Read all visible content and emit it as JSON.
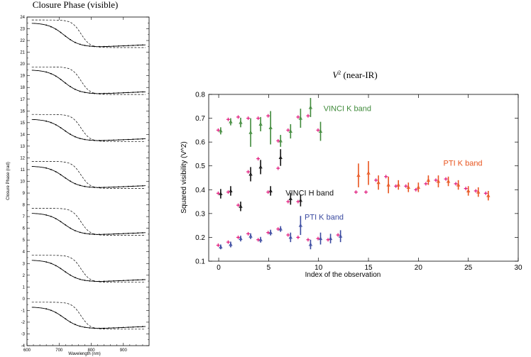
{
  "charts": [
    {
      "id": "left",
      "title": "Closure Phase (visible)",
      "xlabel": "Wavelength (nm)",
      "ylabel": "Closure Phase (rad)"
    },
    {
      "id": "right",
      "title_main": "V",
      "title_sup": "2",
      "title_rest": " (near-IR)",
      "xlabel": "Index of the observation",
      "ylabel": "Squared visibility (V^2)"
    }
  ],
  "chart_data": [
    {
      "type": "line",
      "title": "Closure Phase (visible)",
      "xlabel": "Wavelength (nm)",
      "ylabel": "Closure Phase (rad)",
      "xlim": [
        600,
        980
      ],
      "ylim": [
        -4,
        24
      ],
      "xticks": [
        600,
        700,
        800,
        900
      ],
      "yticks": [
        -4,
        -3,
        -2,
        -1,
        0,
        1,
        2,
        3,
        4,
        5,
        6,
        7,
        8,
        9,
        10,
        11,
        12,
        13,
        14,
        15,
        16,
        17,
        18,
        19,
        20,
        21,
        22,
        23,
        24
      ],
      "panels": [
        {
          "high": 23.5,
          "low": 21.45,
          "dash_high": 23.75,
          "dash_low": 21.4
        },
        {
          "high": 19.5,
          "low": 17.45,
          "dash_high": 19.75,
          "dash_low": 17.4
        },
        {
          "high": 15.3,
          "low": 13.45,
          "dash_high": 15.7,
          "dash_low": 13.4
        },
        {
          "high": 11.3,
          "low": 9.45,
          "dash_high": 11.7,
          "dash_low": 9.4
        },
        {
          "high": 7.3,
          "low": 5.45,
          "dash_high": 7.7,
          "dash_low": 5.4
        },
        {
          "high": 3.3,
          "low": 1.45,
          "dash_high": 3.7,
          "dash_low": 1.4
        },
        {
          "high": -0.7,
          "low": -2.55,
          "dash_high": -0.3,
          "dash_low": -2.6
        }
      ],
      "line_styles": [
        "solid",
        "dashed"
      ]
    },
    {
      "type": "scatter",
      "title": "V2 (near-IR)",
      "xlabel": "Index of the observation",
      "ylabel": "Squared visibility (V^2)",
      "xlim": [
        -1,
        30
      ],
      "ylim": [
        0.1,
        0.8
      ],
      "xticks": [
        0,
        5,
        10,
        15,
        20,
        25,
        30
      ],
      "yticks": [
        0.1,
        0.2,
        0.3,
        0.4,
        0.5,
        0.6,
        0.7,
        0.8
      ],
      "model_color": "#e0157a",
      "series": [
        {
          "name": "VINCI K band",
          "color": "#3f8a3a",
          "label_pos": [
            10.5,
            0.73
          ],
          "points": [
            {
              "x": 0.2,
              "y": 0.647,
              "err": 0.015,
              "model": 0.65
            },
            {
              "x": 1.2,
              "y": 0.685,
              "err": 0.015,
              "model": 0.695
            },
            {
              "x": 2.2,
              "y": 0.682,
              "err": 0.02,
              "model": 0.705
            },
            {
              "x": 3.2,
              "y": 0.64,
              "err": 0.06,
              "model": 0.7
            },
            {
              "x": 4.2,
              "y": 0.675,
              "err": 0.03,
              "model": 0.7
            },
            {
              "x": 5.2,
              "y": 0.66,
              "err": 0.07,
              "model": 0.71
            },
            {
              "x": 6.2,
              "y": 0.605,
              "err": 0.025,
              "model": 0.605
            },
            {
              "x": 7.2,
              "y": 0.645,
              "err": 0.03,
              "model": 0.65
            },
            {
              "x": 8.2,
              "y": 0.7,
              "err": 0.04,
              "model": 0.705
            },
            {
              "x": 9.2,
              "y": 0.745,
              "err": 0.04,
              "model": 0.71
            },
            {
              "x": 10.2,
              "y": 0.645,
              "err": 0.04,
              "model": 0.65
            }
          ]
        },
        {
          "name": "VINCI H band",
          "color": "#111111",
          "label_pos": [
            6.7,
            0.375
          ],
          "points": [
            {
              "x": 0.2,
              "y": 0.383,
              "err": 0.02,
              "model": 0.385
            },
            {
              "x": 1.2,
              "y": 0.395,
              "err": 0.02,
              "model": 0.39
            },
            {
              "x": 2.2,
              "y": 0.33,
              "err": 0.02,
              "model": 0.335
            },
            {
              "x": 3.2,
              "y": 0.465,
              "err": 0.03,
              "model": 0.475
            },
            {
              "x": 4.2,
              "y": 0.495,
              "err": 0.03,
              "model": 0.53
            },
            {
              "x": 5.2,
              "y": 0.395,
              "err": 0.02,
              "model": 0.39
            },
            {
              "x": 6.2,
              "y": 0.535,
              "err": 0.035,
              "model": 0.49
            },
            {
              "x": 7.2,
              "y": 0.362,
              "err": 0.025,
              "model": 0.35
            },
            {
              "x": 8.2,
              "y": 0.355,
              "err": 0.025,
              "model": 0.35
            }
          ]
        },
        {
          "name": "PTI K band",
          "color": "#3a4aa0",
          "label_pos": [
            8.6,
            0.275
          ],
          "points": [
            {
              "x": 0.2,
              "y": 0.16,
              "err": 0.01,
              "model": 0.167
            },
            {
              "x": 1.2,
              "y": 0.17,
              "err": 0.012,
              "model": 0.18
            },
            {
              "x": 2.2,
              "y": 0.195,
              "err": 0.012,
              "model": 0.2
            },
            {
              "x": 3.2,
              "y": 0.205,
              "err": 0.012,
              "model": 0.215
            },
            {
              "x": 4.2,
              "y": 0.19,
              "err": 0.012,
              "model": 0.19
            },
            {
              "x": 5.2,
              "y": 0.22,
              "err": 0.012,
              "model": 0.22
            },
            {
              "x": 6.2,
              "y": 0.235,
              "err": 0.012,
              "model": 0.235
            },
            {
              "x": 7.2,
              "y": 0.2,
              "err": 0.02,
              "model": 0.21
            },
            {
              "x": 8.2,
              "y": 0.25,
              "err": 0.04,
              "model": 0.2
            },
            {
              "x": 9.2,
              "y": 0.17,
              "err": 0.02,
              "model": 0.19
            },
            {
              "x": 10.2,
              "y": 0.195,
              "err": 0.025,
              "model": 0.195
            },
            {
              "x": 11.2,
              "y": 0.195,
              "err": 0.02,
              "model": 0.19
            },
            {
              "x": 12.2,
              "y": 0.205,
              "err": 0.025,
              "model": 0.21
            }
          ]
        },
        {
          "name": "PTI K band",
          "color": "#e8541e",
          "label_pos": [
            22.5,
            0.5
          ],
          "points": [
            {
              "x": 14.0,
              "y": 0.46,
              "err": 0.05,
              "model": 0.39
            },
            {
              "x": 15.0,
              "y": 0.47,
              "err": 0.05,
              "model": 0.39
            },
            {
              "x": 16.0,
              "y": 0.43,
              "err": 0.03,
              "model": 0.44
            },
            {
              "x": 17.0,
              "y": 0.42,
              "err": 0.035,
              "model": 0.455
            },
            {
              "x": 18.0,
              "y": 0.42,
              "err": 0.02,
              "model": 0.415
            },
            {
              "x": 19.0,
              "y": 0.41,
              "err": 0.02,
              "model": 0.415
            },
            {
              "x": 20.0,
              "y": 0.41,
              "err": 0.02,
              "model": 0.4
            },
            {
              "x": 21.0,
              "y": 0.44,
              "err": 0.02,
              "model": 0.425
            },
            {
              "x": 22.0,
              "y": 0.435,
              "err": 0.025,
              "model": 0.44
            },
            {
              "x": 23.0,
              "y": 0.435,
              "err": 0.02,
              "model": 0.445
            },
            {
              "x": 24.0,
              "y": 0.42,
              "err": 0.02,
              "model": 0.425
            },
            {
              "x": 25.0,
              "y": 0.395,
              "err": 0.02,
              "model": 0.405
            },
            {
              "x": 26.0,
              "y": 0.39,
              "err": 0.02,
              "model": 0.395
            },
            {
              "x": 27.0,
              "y": 0.375,
              "err": 0.02,
              "model": 0.385
            }
          ]
        }
      ]
    }
  ]
}
